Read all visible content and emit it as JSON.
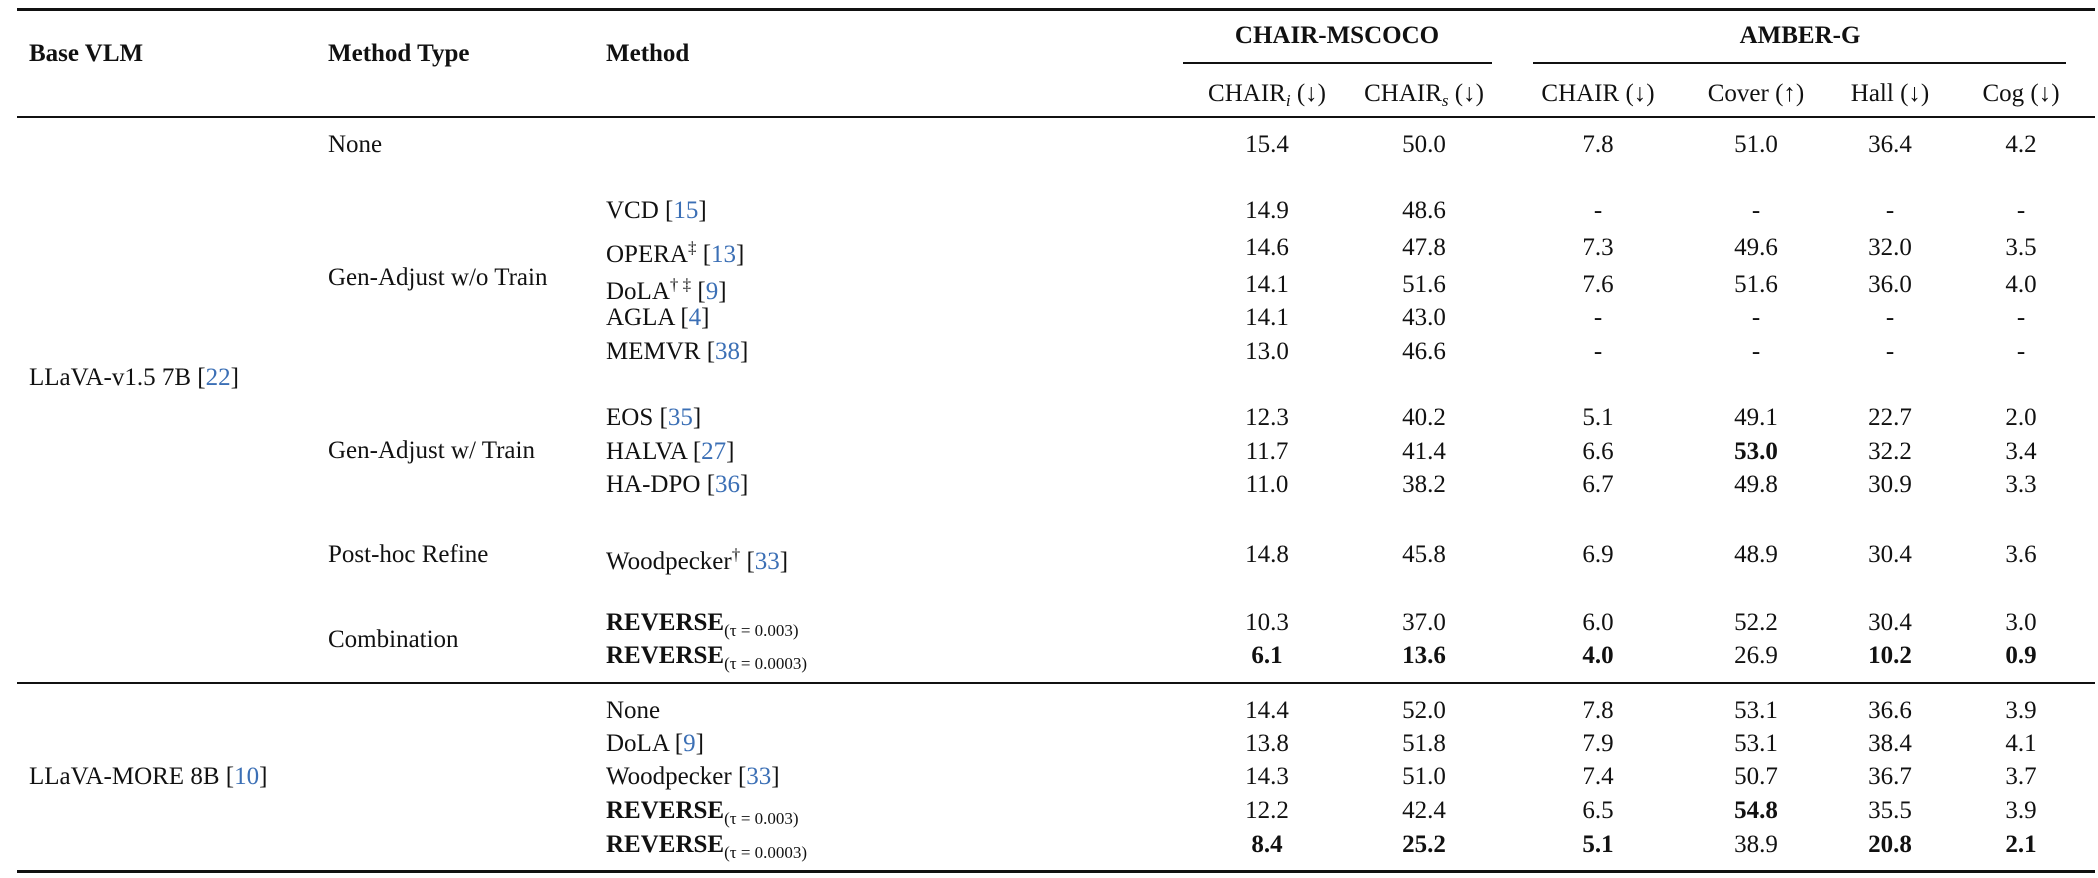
{
  "headers": {
    "base_vlm": "Base VLM",
    "method_type": "Method Type",
    "method": "Method",
    "group1": "CHAIR-MSCOCO",
    "group2": "AMBER-G",
    "cols": [
      {
        "main": "CHAIR",
        "sub": "i",
        "arrow": " (↓)"
      },
      {
        "main": "CHAIR",
        "sub": "s",
        "arrow": " (↓)"
      },
      {
        "main": "CHAIR",
        "sub": "",
        "arrow": " (↓)"
      },
      {
        "main": "Cover",
        "sub": "",
        "arrow": " (↑)"
      },
      {
        "main": "Hall",
        "sub": "",
        "arrow": " (↓)"
      },
      {
        "main": "Cog",
        "sub": "",
        "arrow": " (↓)"
      }
    ]
  },
  "sections": [
    {
      "base": {
        "name": "LLaVA-v1.5 7B [",
        "cite": "22",
        "close": "]"
      },
      "types": [
        "None",
        "Gen-Adjust w/o Train",
        "Gen-Adjust w/ Train",
        "Post-hoc Refine",
        "Combination"
      ],
      "rows": [
        {
          "method": "",
          "mark": "",
          "cite": "",
          "tau": "",
          "bold_method": false,
          "values": [
            "15.4",
            "50.0",
            "7.8",
            "51.0",
            "36.4",
            "4.2"
          ],
          "bold": []
        },
        {
          "method": "VCD",
          "mark": "",
          "cite": "15",
          "tau": "",
          "bold_method": false,
          "values": [
            "14.9",
            "48.6",
            "-",
            "-",
            "-",
            "-"
          ],
          "bold": []
        },
        {
          "method": "OPERA",
          "mark": "‡",
          "cite": "13",
          "tau": "",
          "bold_method": false,
          "values": [
            "14.6",
            "47.8",
            "7.3",
            "49.6",
            "32.0",
            "3.5"
          ],
          "bold": []
        },
        {
          "method": "DoLA",
          "mark": "† ‡",
          "cite": "9",
          "tau": "",
          "bold_method": false,
          "values": [
            "14.1",
            "51.6",
            "7.6",
            "51.6",
            "36.0",
            "4.0"
          ],
          "bold": []
        },
        {
          "method": "AGLA",
          "mark": "",
          "cite": "4",
          "tau": "",
          "bold_method": false,
          "values": [
            "14.1",
            "43.0",
            "-",
            "-",
            "-",
            "-"
          ],
          "bold": []
        },
        {
          "method": "MEMVR",
          "mark": "",
          "cite": "38",
          "tau": "",
          "bold_method": false,
          "values": [
            "13.0",
            "46.6",
            "-",
            "-",
            "-",
            "-"
          ],
          "bold": []
        },
        {
          "method": "EOS",
          "mark": "",
          "cite": "35",
          "tau": "",
          "bold_method": false,
          "values": [
            "12.3",
            "40.2",
            "5.1",
            "49.1",
            "22.7",
            "2.0"
          ],
          "bold": []
        },
        {
          "method": "HALVA",
          "mark": "",
          "cite": "27",
          "tau": "",
          "bold_method": false,
          "values": [
            "11.7",
            "41.4",
            "6.6",
            "53.0",
            "32.2",
            "3.4"
          ],
          "bold": [
            3
          ]
        },
        {
          "method": "HA-DPO",
          "mark": "",
          "cite": "36",
          "tau": "",
          "bold_method": false,
          "values": [
            "11.0",
            "38.2",
            "6.7",
            "49.8",
            "30.9",
            "3.3"
          ],
          "bold": []
        },
        {
          "method": "Woodpecker",
          "mark": "†",
          "cite": "33",
          "tau": "",
          "bold_method": false,
          "values": [
            "14.8",
            "45.8",
            "6.9",
            "48.9",
            "30.4",
            "3.6"
          ],
          "bold": []
        },
        {
          "method": "REVERSE",
          "mark": "",
          "cite": "",
          "tau": "(τ = 0.003)",
          "bold_method": true,
          "values": [
            "10.3",
            "37.0",
            "6.0",
            "52.2",
            "30.4",
            "3.0"
          ],
          "bold": []
        },
        {
          "method": "REVERSE",
          "mark": "",
          "cite": "",
          "tau": "(τ = 0.0003)",
          "bold_method": true,
          "values": [
            "6.1",
            "13.6",
            "4.0",
            "26.9",
            "10.2",
            "0.9"
          ],
          "bold": [
            0,
            1,
            2,
            4,
            5
          ]
        }
      ]
    },
    {
      "base": {
        "name": "LLaVA-MORE 8B [",
        "cite": "10",
        "close": "]"
      },
      "types": [],
      "rows": [
        {
          "method": "None",
          "mark": "",
          "cite": "",
          "tau": "",
          "bold_method": false,
          "values": [
            "14.4",
            "52.0",
            "7.8",
            "53.1",
            "36.6",
            "3.9"
          ],
          "bold": []
        },
        {
          "method": "DoLA",
          "mark": "",
          "cite": "9",
          "tau": "",
          "bold_method": false,
          "values": [
            "13.8",
            "51.8",
            "7.9",
            "53.1",
            "38.4",
            "4.1"
          ],
          "bold": []
        },
        {
          "method": "Woodpecker",
          "mark": "",
          "cite": "33",
          "tau": "",
          "bold_method": false,
          "values": [
            "14.3",
            "51.0",
            "7.4",
            "50.7",
            "36.7",
            "3.7"
          ],
          "bold": []
        },
        {
          "method": "REVERSE",
          "mark": "",
          "cite": "",
          "tau": "(τ = 0.003)",
          "bold_method": true,
          "values": [
            "12.2",
            "42.4",
            "6.5",
            "54.8",
            "35.5",
            "3.9"
          ],
          "bold": [
            3
          ]
        },
        {
          "method": "REVERSE",
          "mark": "",
          "cite": "",
          "tau": "(τ = 0.0003)",
          "bold_method": true,
          "values": [
            "8.4",
            "25.2",
            "5.1",
            "38.9",
            "20.8",
            "2.1"
          ],
          "bold": [
            0,
            1,
            2,
            4,
            5
          ]
        }
      ]
    }
  ]
}
